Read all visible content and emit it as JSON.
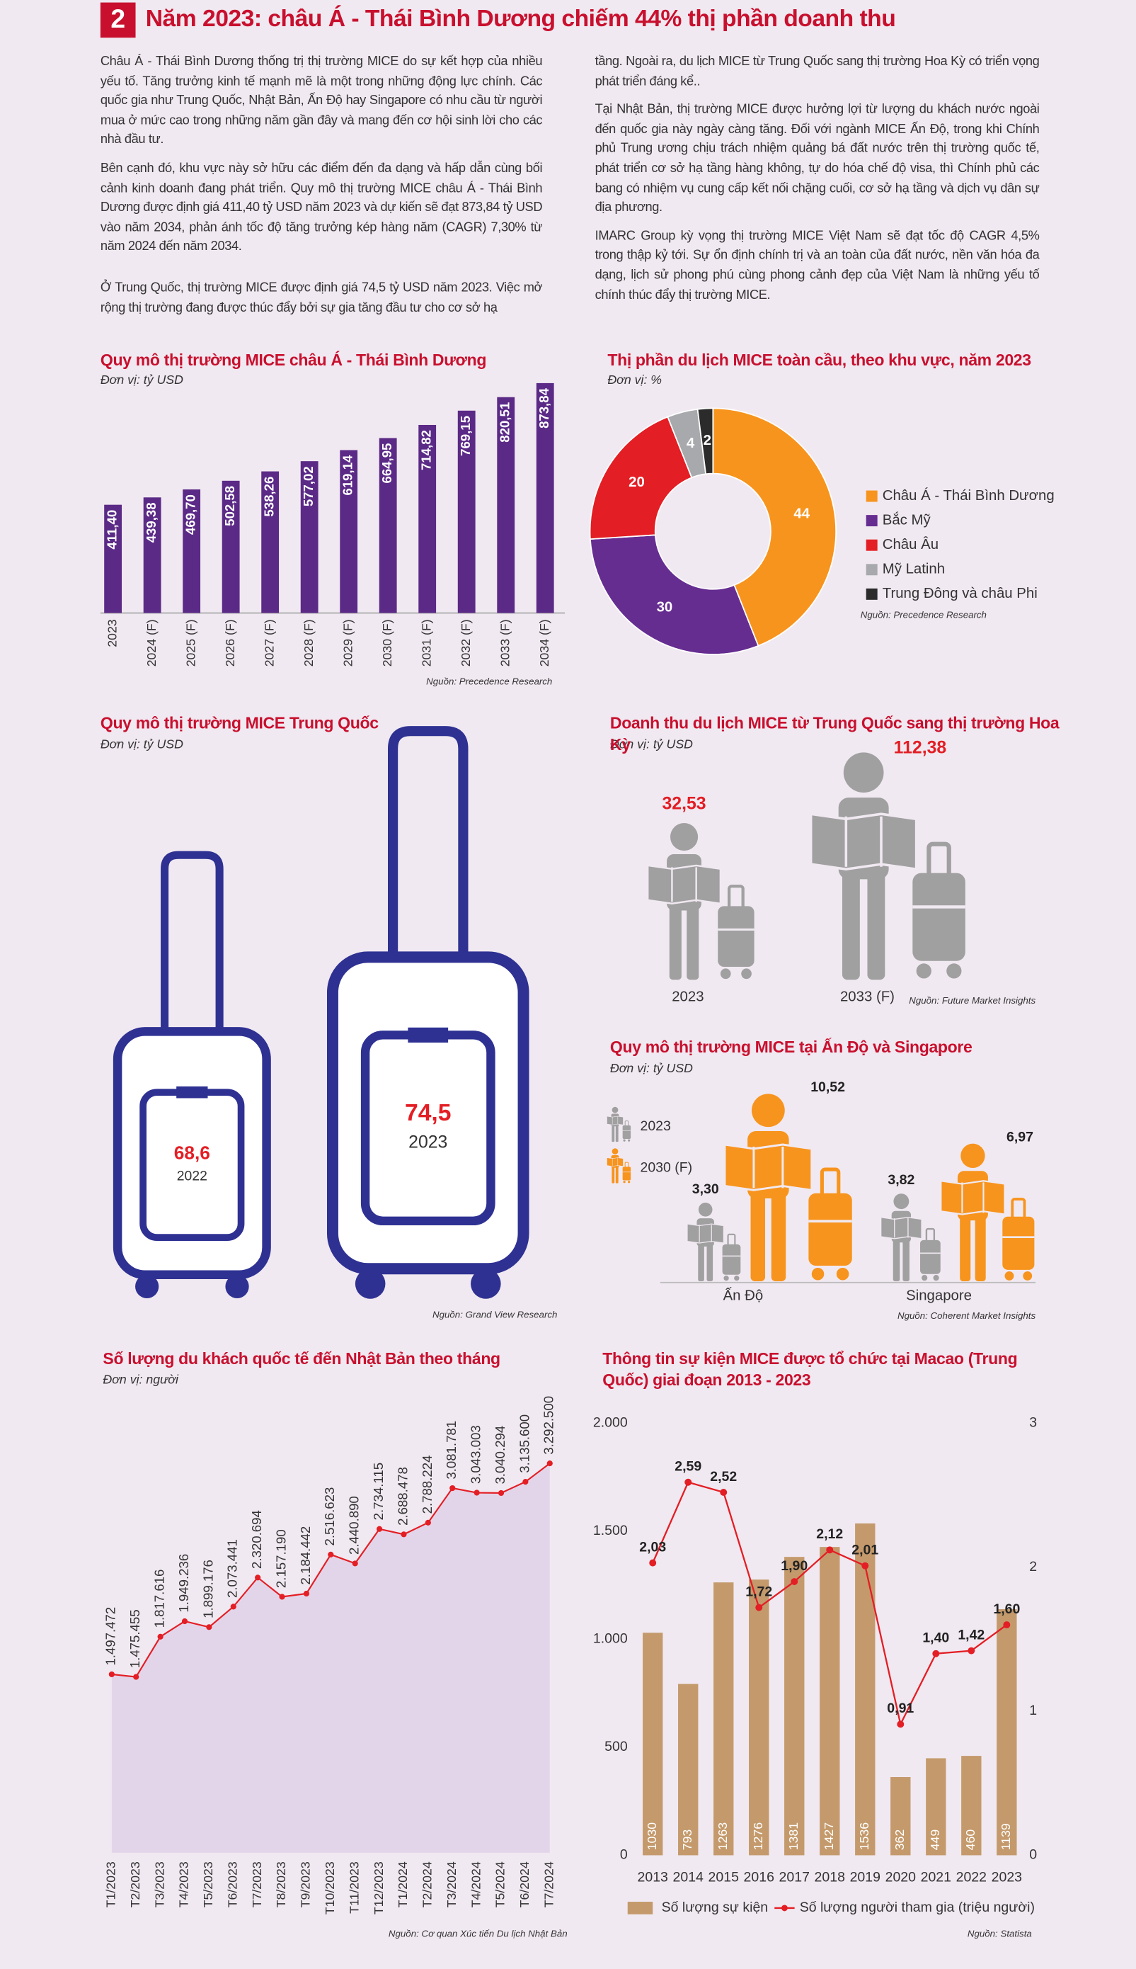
{
  "header": {
    "number": "2",
    "title": "Năm 2023: châu Á - Thái Bình Dương chiếm 44% thị phần doanh thu"
  },
  "text": {
    "left": [
      "Châu Á - Thái Bình Dương thống trị thị trường MICE do sự kết hợp của nhiều yếu tố. Tăng trưởng kinh tế mạnh mẽ là một trong những động lực chính. Các quốc gia như Trung Quốc, Nhật Bản, Ấn Độ hay Singapore có nhu cầu từ người mua ở mức cao trong những năm gần đây và mang đến cơ hội sinh lời cho các nhà đầu tư.",
      "Bên cạnh đó, khu vực này sở hữu các điểm đến đa dạng và hấp dẫn cùng bối cảnh kinh doanh đang phát triển. Quy mô thị trường MICE châu Á - Thái Bình Dương được định giá 411,40 tỷ USD năm 2023 và dự kiến sẽ đạt 873,84 tỷ USD vào năm 2034, phản ánh tốc độ tăng trưởng kép hàng năm (CAGR) 7,30% từ năm 2024 đến năm 2034.",
      "Ở Trung Quốc, thị trường MICE được định giá 74,5 tỷ USD năm 2023. Việc mở rộng thị trường đang được thúc đẩy bởi sự gia tăng đầu tư cho cơ sở hạ"
    ],
    "right": [
      "tầng. Ngoài ra, du lịch MICE từ Trung Quốc sang thị trường Hoa Kỳ có triển vọng phát triển đáng kể..",
      "Tại Nhật Bản, thị trường MICE được hưởng lợi từ lượng du khách nước ngoài đến quốc gia này ngày càng tăng. Đối với ngành MICE Ấn Độ, trong khi Chính phủ Trung ương chịu trách nhiệm quảng bá đất nước trên thị trường quốc tế, phát triển cơ sở hạ tầng hàng không, tự do hóa chế độ visa, thì Chính phủ các bang có nhiệm vụ cung cấp kết nối chặng cuối, cơ sở hạ tầng và dịch vụ dân sự địa phương.",
      "IMARC Group kỳ vọng thị trường MICE Việt Nam sẽ đạt tốc độ CAGR 4,5% trong thập kỷ tới. Sự ổn định chính trị và an toàn của đất nước, nền văn hóa đa dạng, lịch sử phong phú cùng phong cảnh đẹp của Việt Nam là những yếu tố chính thúc đẩy thị trường MICE."
    ]
  },
  "chart_data": [
    {
      "type": "bar",
      "title": "Quy mô thị trường MICE châu Á - Thái Bình Dương",
      "subtitle": "Đơn vị: tỷ USD",
      "source": "Nguồn: Precedence Research",
      "color": "#5b2a86",
      "categories": [
        "2023",
        "2024 (F)",
        "2025 (F)",
        "2026 (F)",
        "2027 (F)",
        "2028 (F)",
        "2029 (F)",
        "2030 (F)",
        "2031 (F)",
        "2032 (F)",
        "2033 (F)",
        "2034 (F)"
      ],
      "values": [
        411.4,
        439.38,
        469.7,
        502.58,
        538.26,
        577.02,
        619.14,
        664.95,
        714.82,
        769.15,
        820.51,
        873.84
      ],
      "value_labels": [
        "411,40",
        "439,38",
        "469,70",
        "502,58",
        "538,26",
        "577,02",
        "619,14",
        "664,95",
        "714,82",
        "769,15",
        "820,51",
        "873,84"
      ]
    },
    {
      "type": "donut",
      "title": "Thị phần du lịch MICE toàn cầu, theo khu vực, năm 2023",
      "subtitle": "Đơn vị: %",
      "source": "Nguồn: Precedence Research",
      "categories": [
        "Châu Á - Thái Bình Dương",
        "Bắc Mỹ",
        "Châu Âu",
        "Mỹ Latinh",
        "Trung Đông và châu Phi"
      ],
      "values": [
        44,
        30,
        20,
        4,
        2
      ],
      "colors": [
        "#f7941d",
        "#662d91",
        "#e31e24",
        "#a7a9ac",
        "#2b2b2b"
      ]
    },
    {
      "type": "suitcase",
      "title": "Quy mô thị trường MICE Trung Quốc",
      "subtitle": "Đơn vị: tỷ USD",
      "source": "Nguồn: Grand View Research",
      "color": "#2e3192",
      "categories": [
        "2022",
        "2023"
      ],
      "values": [
        68.6,
        74.5
      ],
      "value_labels": [
        "68,6",
        "74,5"
      ]
    },
    {
      "type": "pictogram",
      "title": "Doanh thu du lịch MICE từ Trung Quốc sang thị trường Hoa Kỳ",
      "subtitle": "Đơn vị: tỷ USD",
      "source": "Nguồn: Future Market Insights",
      "color": "#a0a0a0",
      "categories": [
        "2023",
        "2033 (F)"
      ],
      "values": [
        32.53,
        112.38
      ],
      "value_labels": [
        "32,53",
        "112,38"
      ]
    },
    {
      "type": "pictogram",
      "title": "Quy mô thị trường MICE tại Ấn Độ và Singapore",
      "subtitle": "Đơn vị: tỷ USD",
      "source": "Nguồn: Coherent Market Insights",
      "categories": [
        "Ấn Độ",
        "Singapore"
      ],
      "series": [
        {
          "name": "2023",
          "color": "#a0a0a0",
          "values": [
            3.3,
            3.82
          ],
          "value_labels": [
            "3,30",
            "3,82"
          ]
        },
        {
          "name": "2030 (F)",
          "color": "#f7941d",
          "values": [
            10.52,
            6.97
          ],
          "value_labels": [
            "10,52",
            "6,97"
          ]
        }
      ]
    },
    {
      "type": "area",
      "title": "Số lượng du khách quốc tế đến Nhật Bản theo tháng",
      "subtitle": "Đơn vị: người",
      "source": "Nguồn: Cơ quan Xúc tiến Du lịch Nhật Bản",
      "color": "#e31e24",
      "fill": "#e3d5e9",
      "categories": [
        "T1/2023",
        "T2/2023",
        "T3/2023",
        "T4/2023",
        "T5/2023",
        "T6/2023",
        "T7/2023",
        "T8/2023",
        "T9/2023",
        "T10/2023",
        "T11/2023",
        "T12/2023",
        "T1/2024",
        "T2/2024",
        "T3/2024",
        "T4/2024",
        "T5/2024",
        "T6/2024",
        "T7/2024"
      ],
      "values": [
        1497472,
        1475455,
        1817616,
        1949236,
        1899176,
        2073441,
        2320694,
        2157190,
        2184442,
        2516623,
        2440890,
        2734115,
        2688478,
        2788224,
        3081781,
        3043003,
        3040294,
        3135600,
        3292500
      ],
      "value_labels": [
        "1.497.472",
        "1.475.455",
        "1.817.616",
        "1.949.236",
        "1.899.176",
        "2.073.441",
        "2.320.694",
        "2.157.190",
        "2.184.442",
        "2.516.623",
        "2.440.890",
        "2.734.115",
        "2.688.478",
        "2.788.224",
        "3.081.781",
        "3.043.003",
        "3.040.294",
        "3.135.600",
        "3.292.500"
      ]
    },
    {
      "type": "combo",
      "title": "Thông tin sự kiện MICE được tổ chức tại Macao (Trung Quốc) giai đoạn 2013 - 2023",
      "source": "Nguồn: Statista",
      "categories": [
        "2013",
        "2014",
        "2015",
        "2016",
        "2017",
        "2018",
        "2019",
        "2020",
        "2021",
        "2022",
        "2023"
      ],
      "ylim": [
        0,
        2000
      ],
      "yticks": [
        0,
        500,
        {
          "value": 1000,
          "label": "1.000"
        },
        {
          "value": 1500,
          "label": "1.500"
        },
        {
          "value": 2000,
          "label": "2.000"
        }
      ],
      "y2lim": [
        0,
        3
      ],
      "y2ticks": [
        0,
        1,
        2,
        3
      ],
      "series": [
        {
          "name": "Số lượng sự kiện",
          "color": "#c49a6c",
          "values": [
            1030,
            793,
            1263,
            1276,
            1381,
            1427,
            1536,
            362,
            449,
            460,
            1139
          ]
        },
        {
          "name": "Số lượng người tham gia (triệu người)",
          "color": "#e31e24",
          "axis": "y2",
          "values": [
            2.03,
            2.59,
            2.52,
            1.72,
            1.9,
            2.12,
            2.01,
            0.91,
            1.4,
            1.42,
            1.6
          ],
          "value_labels": [
            "2,03",
            "2,59",
            "2,52",
            "1,72",
            "1,90",
            "2,12",
            "2,01",
            "0,91",
            "1,40",
            "1,42",
            "1,60"
          ]
        }
      ]
    }
  ]
}
